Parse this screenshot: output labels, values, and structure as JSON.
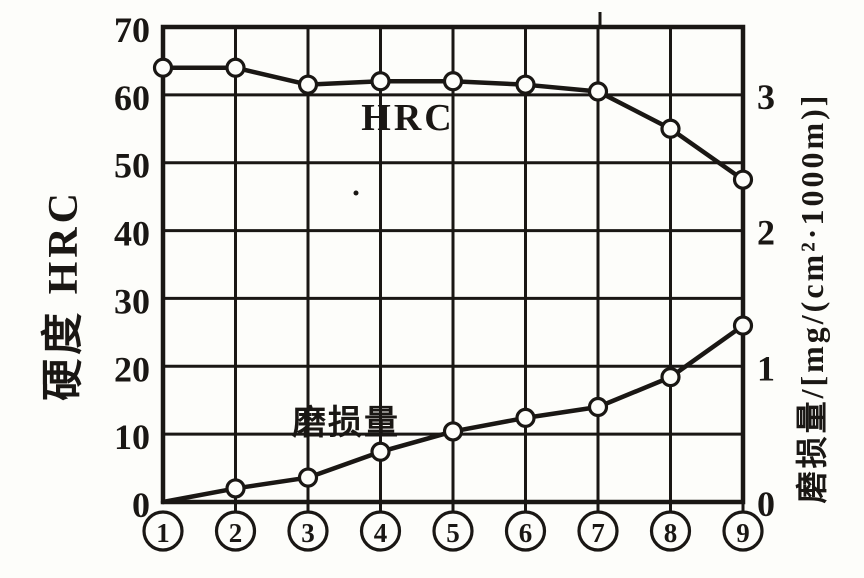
{
  "chart_data": {
    "type": "line",
    "title": "",
    "x_axis": {
      "style": "circled-numbers",
      "labels": [
        "1",
        "2",
        "3",
        "4",
        "5",
        "6",
        "7",
        "8",
        "9"
      ]
    },
    "left_axis": {
      "title": "硬度 HRC",
      "min": 0,
      "max": 70,
      "ticks": [
        0,
        10,
        20,
        30,
        40,
        50,
        60,
        70
      ]
    },
    "right_axis": {
      "title": "磨损量/[mg/(cm²·1000m)]",
      "min": 0,
      "max": 3.5,
      "ticks": [
        0,
        1,
        2,
        3
      ]
    },
    "grid": true,
    "legend": "none",
    "series": [
      {
        "name": "HRC",
        "axis": "left",
        "marker": "open-circle",
        "values": [
          64,
          64,
          61.5,
          62,
          62,
          61.5,
          60.5,
          55,
          47.5
        ],
        "label": {
          "text": "HRC"
        }
      },
      {
        "name": "磨损量",
        "axis": "right",
        "marker": "open-circle",
        "skip_first_marker": true,
        "values": [
          0,
          0.1,
          0.18,
          0.37,
          0.52,
          0.62,
          0.7,
          0.92,
          1.3
        ],
        "label": {
          "text": "磨损量"
        }
      }
    ],
    "ink_color": "#1a1714",
    "paper_color": "#fdfdfa"
  }
}
